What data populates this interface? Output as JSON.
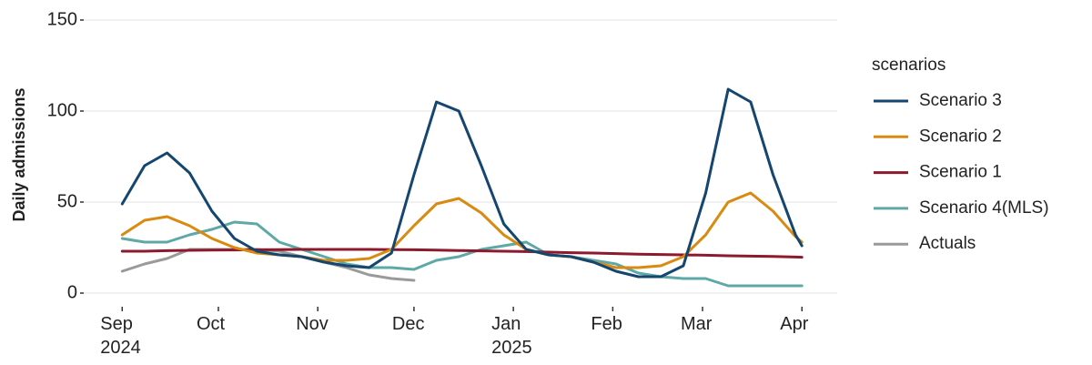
{
  "chart_data": {
    "type": "line",
    "y_label": "Daily admissions",
    "legend_title": "scenarios",
    "legend": "right",
    "grid": true,
    "x": [
      "2024-09-01",
      "2024-09-08",
      "2024-09-15",
      "2024-09-22",
      "2024-09-29",
      "2024-10-06",
      "2024-10-13",
      "2024-10-20",
      "2024-10-27",
      "2024-11-03",
      "2024-11-10",
      "2024-11-17",
      "2024-11-24",
      "2024-12-01",
      "2024-12-08",
      "2024-12-15",
      "2024-12-22",
      "2024-12-29",
      "2025-01-05",
      "2025-01-12",
      "2025-01-19",
      "2025-01-26",
      "2025-02-02",
      "2025-02-09",
      "2025-02-16",
      "2025-02-23",
      "2025-03-02",
      "2025-03-09",
      "2025-03-16",
      "2025-03-23",
      "2025-03-30",
      "2025-04-01"
    ],
    "series": [
      {
        "name": "Scenario 3",
        "color": "#14466f",
        "values": [
          49,
          70,
          77,
          66,
          45,
          30,
          23,
          21,
          20,
          17,
          15,
          14,
          22,
          65,
          105,
          100,
          70,
          38,
          24,
          21,
          20,
          17,
          12,
          9,
          9,
          15,
          55,
          112,
          105,
          65,
          32,
          26
        ]
      },
      {
        "name": "Scenario 2",
        "color": "#d98a10",
        "values": [
          32,
          40,
          42,
          37,
          30,
          25,
          22,
          21,
          20,
          18,
          18,
          19,
          24,
          37,
          49,
          52,
          44,
          32,
          24,
          21,
          20,
          17,
          14,
          14,
          15,
          20,
          32,
          50,
          55,
          45,
          31,
          28
        ]
      },
      {
        "name": "Scenario 1",
        "color": "#8c1a2c",
        "values": [
          23,
          23,
          23.3,
          23.5,
          23.6,
          23.7,
          23.8,
          23.9,
          24,
          24,
          24,
          24,
          23.9,
          23.8,
          23.6,
          23.4,
          23.2,
          23,
          22.8,
          22.5,
          22.2,
          22,
          21.7,
          21.4,
          21.2,
          21,
          20.8,
          20.5,
          20.3,
          20.1,
          19.8,
          19.7
        ]
      },
      {
        "name": "Scenario 4(MLS)",
        "color": "#5fa8a8",
        "values": [
          30,
          28,
          28,
          32,
          35,
          39,
          38,
          28,
          24,
          20,
          16,
          14,
          14,
          13,
          18,
          20,
          24,
          26,
          28,
          21,
          20,
          18,
          16,
          11,
          9,
          8,
          8,
          4,
          4,
          4,
          4,
          4
        ]
      },
      {
        "name": "Actuals",
        "color": "#9a9a9a",
        "values": [
          12,
          16,
          19,
          24,
          24,
          24,
          24,
          23,
          20,
          17,
          14,
          10,
          8,
          7,
          null,
          null,
          null,
          null,
          null,
          null,
          null,
          null,
          null,
          null,
          null,
          null,
          null,
          null,
          null,
          null,
          null,
          null
        ]
      }
    ],
    "xlim": [
      "2024-08-20",
      "2025-04-12"
    ],
    "xticks": [
      {
        "value": "2024-09-01",
        "label": "Sep\n2024"
      },
      {
        "value": "2024-10-01",
        "label": "Oct"
      },
      {
        "value": "2024-11-01",
        "label": "Nov"
      },
      {
        "value": "2024-12-01",
        "label": "Dec"
      },
      {
        "value": "2025-01-01",
        "label": "Jan\n2025"
      },
      {
        "value": "2025-02-01",
        "label": "Feb"
      },
      {
        "value": "2025-03-01",
        "label": "Mar"
      },
      {
        "value": "2025-04-01",
        "label": "Apr"
      }
    ],
    "ylim": [
      -7.5,
      157.5
    ],
    "yticks": [
      0,
      50,
      100,
      150
    ]
  }
}
